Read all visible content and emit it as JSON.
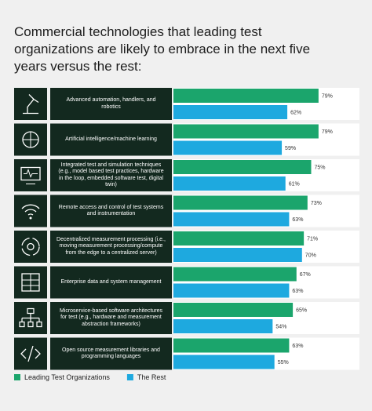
{
  "chart_data": {
    "type": "bar",
    "orientation": "horizontal",
    "title": "Commercial technologies that leading test organizations are likely to embrace in the next five years versus the rest:",
    "categories": [
      "Advanced automation, handlers, and robotics",
      "Artificial intelligence/machine learning",
      "Integrated test and simulation techniques (e.g., model based test practices, hardware in the loop, embedded software test, digital twin)",
      "Remote access and control of test systems and instrumentation",
      "Decentralized measurement processing (i.e., moving measurement processing/compute from the edge to a centralized server)",
      "Enterprise data and system management",
      "Microservice-based software architectures for test (e.g., hardware and measurement abstraction frameworks)",
      "Open source measurement libraries and programming languages"
    ],
    "series": [
      {
        "name": "Leading Test Organizations",
        "color": "#1ba56c",
        "values": [
          79,
          79,
          75,
          73,
          71,
          67,
          65,
          63
        ],
        "value_labels": [
          "79%",
          "79%",
          "75%",
          "73%",
          "71%",
          "67%",
          "65%",
          "63%"
        ]
      },
      {
        "name": "The Rest",
        "color": "#1ea9df",
        "values": [
          62,
          59,
          61,
          63,
          70,
          63,
          54,
          55
        ],
        "value_labels": [
          "62%",
          "59%",
          "61%",
          "63%",
          "70%",
          "63%",
          "54%",
          "55%"
        ]
      }
    ],
    "xlim": [
      0,
      100
    ],
    "legend": "bottom-left"
  }
}
